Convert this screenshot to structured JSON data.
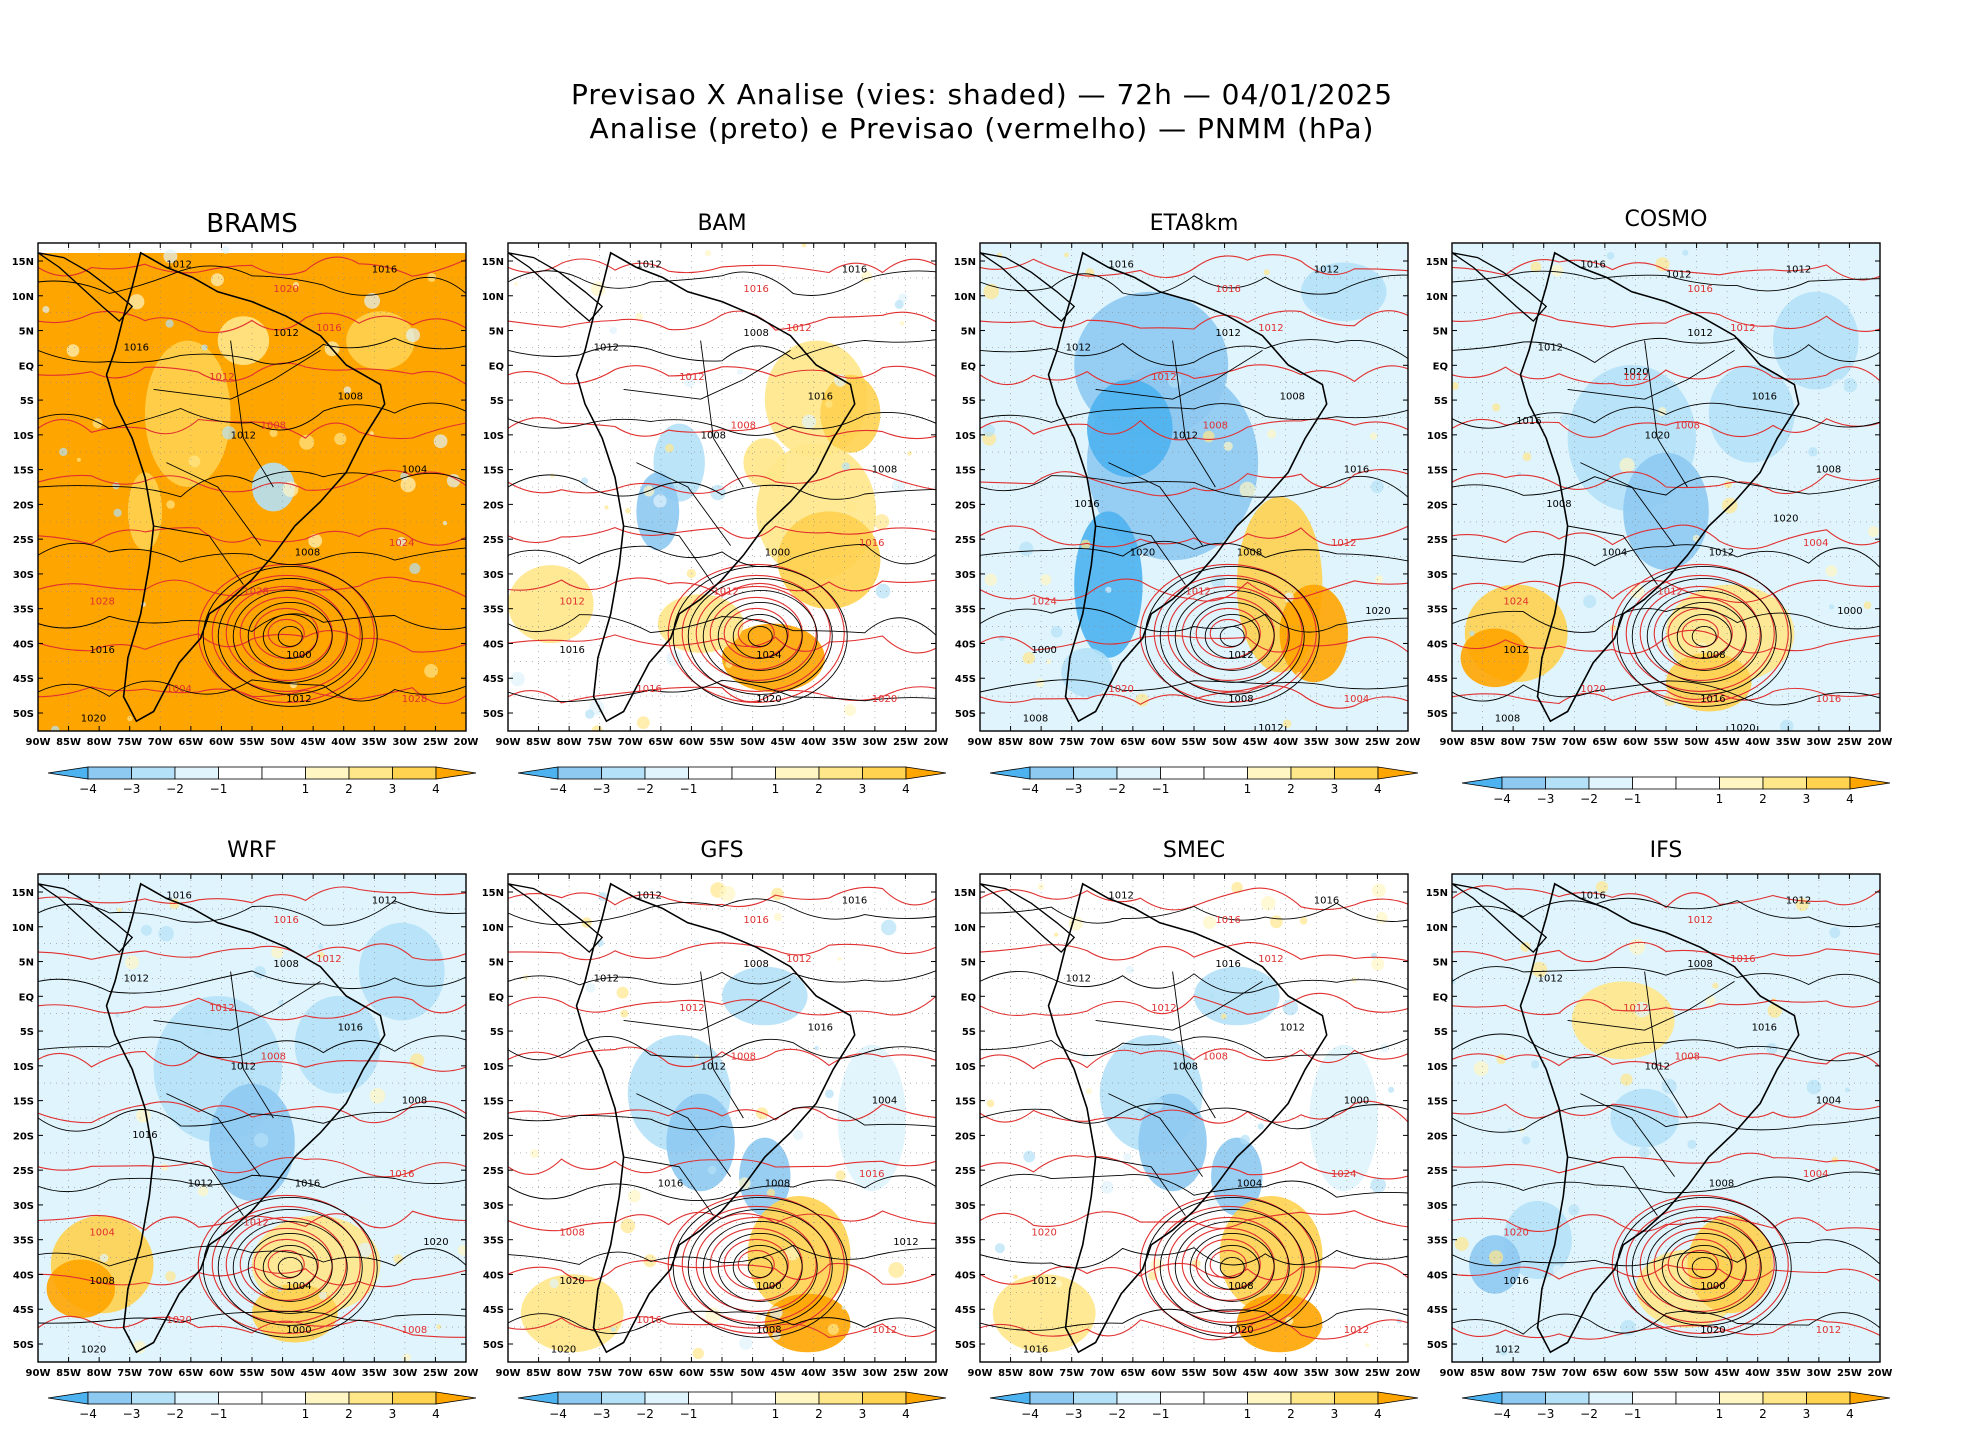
{
  "header": {
    "title_line1": "Previsao X Analise (vies: shaded) — 72h — 04/01/2025",
    "title_line2": "Analise (preto) e Previsao (vermelho) — PNMM (hPa)"
  },
  "colors": {
    "neg4": "#4db3f0",
    "neg3": "#8ec9f2",
    "neg2": "#b4e1f7",
    "neg1": "#dff4fc",
    "pos1": "#fff6c4",
    "pos2": "#ffe78a",
    "pos3": "#ffd24f",
    "pos4": "#ffa500",
    "analysis_line": "#000000",
    "forecast_line": "#e03030"
  },
  "axes": {
    "lon_labels": [
      "90W",
      "85W",
      "80W",
      "75W",
      "70W",
      "65W",
      "60W",
      "55W",
      "50W",
      "45W",
      "40W",
      "35W",
      "30W",
      "25W",
      "20W"
    ],
    "lat_labels": [
      "15N",
      "10N",
      "5N",
      "EQ",
      "5S",
      "10S",
      "15S",
      "20S",
      "25S",
      "30S",
      "35S",
      "40S",
      "45S",
      "50S"
    ]
  },
  "colorbar": {
    "labels": [
      "−4",
      "−3",
      "−2",
      "−1",
      "1",
      "2",
      "3",
      "4"
    ]
  },
  "panels": [
    {
      "name": "BRAMS",
      "bias": "warm-strong",
      "isobars": [
        "1012",
        "1016",
        "1016",
        "1012",
        "1008",
        "1012",
        "1008",
        "1004",
        "1000",
        "1012",
        "1016",
        "1020"
      ],
      "forecast_isobars": [
        "1020",
        "1016",
        "1012",
        "1008",
        "1024",
        "1028",
        "1028",
        "1004",
        "1028"
      ]
    },
    {
      "name": "BAM",
      "bias": "warm",
      "isobars": [
        "1012",
        "1016",
        "1012",
        "1008",
        "1016",
        "1008",
        "1000",
        "1008",
        "1024",
        "1020",
        "1016"
      ],
      "forecast_isobars": [
        "1016",
        "1012",
        "1012",
        "1008",
        "1016",
        "1012",
        "1020",
        "1016",
        "1012"
      ]
    },
    {
      "name": "ETA8km",
      "bias": "cold",
      "isobars": [
        "1016",
        "1012",
        "1012",
        "1012",
        "1008",
        "1012",
        "1008",
        "1016",
        "1012",
        "1008",
        "1000",
        "1008",
        "1020",
        "1020",
        "1016",
        "1012"
      ],
      "forecast_isobars": [
        "1016",
        "1012",
        "1012",
        "1008",
        "1012",
        "1024",
        "1004",
        "1020",
        "1012"
      ]
    },
    {
      "name": "COSMO",
      "bias": "cool",
      "isobars": [
        "1016",
        "1012",
        "1012",
        "1012",
        "1016",
        "1020",
        "1012",
        "1008",
        "1008",
        "1016",
        "1012",
        "1008",
        "1000",
        "1004",
        "1008",
        "1020",
        "1020",
        "1020",
        "1012",
        "1016"
      ],
      "forecast_isobars": [
        "1016",
        "1012",
        "1012",
        "1008",
        "1004",
        "1024",
        "1016",
        "1020",
        "1012"
      ]
    },
    {
      "name": "WRF",
      "bias": "cool",
      "isobars": [
        "1016",
        "1012",
        "1012",
        "1008",
        "1016",
        "1012",
        "1016",
        "1008",
        "1004",
        "1000",
        "1008",
        "1020",
        "1020",
        "1012",
        "1016"
      ],
      "forecast_isobars": [
        "1016",
        "1012",
        "1012",
        "1008",
        "1016",
        "1004",
        "1008",
        "1020",
        "1012"
      ]
    },
    {
      "name": "GFS",
      "bias": "mixed",
      "isobars": [
        "1012",
        "1016",
        "1012",
        "1008",
        "1016",
        "1012",
        "1008",
        "1004",
        "1000",
        "1008",
        "1020",
        "1020",
        "1012",
        "1016"
      ],
      "forecast_isobars": [
        "1016",
        "1012",
        "1012",
        "1008",
        "1016",
        "1008",
        "1012",
        "1016"
      ]
    },
    {
      "name": "SMEC",
      "bias": "mixed",
      "isobars": [
        "1012",
        "1016",
        "1012",
        "1016",
        "1012",
        "1008",
        "1004",
        "1000",
        "1008",
        "1020",
        "1012",
        "1016"
      ],
      "forecast_isobars": [
        "1016",
        "1012",
        "1012",
        "1008",
        "1024",
        "1020",
        "1012"
      ]
    },
    {
      "name": "IFS",
      "bias": "neutral",
      "isobars": [
        "1016",
        "1012",
        "1012",
        "1008",
        "1016",
        "1012",
        "1008",
        "1004",
        "1000",
        "1020",
        "1016",
        "1012"
      ],
      "forecast_isobars": [
        "1012",
        "1016",
        "1012",
        "1008",
        "1004",
        "1020",
        "1012"
      ]
    }
  ]
}
